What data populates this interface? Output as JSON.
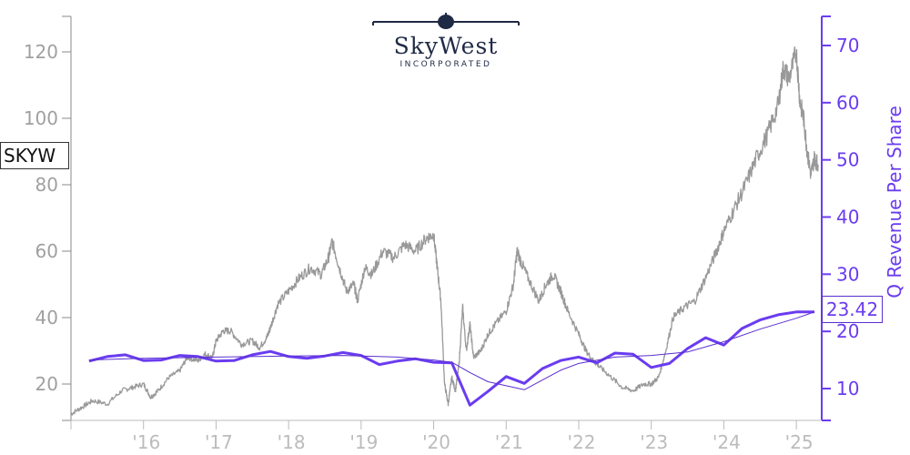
{
  "logo": {
    "name": "SkyWest",
    "subtitle": "INCORPORATED"
  },
  "ticker": "SKYW",
  "last_value_label": "23.42",
  "colors": {
    "price": "#999999",
    "revenue_thick": "#6a3cf0",
    "revenue_thin": "#5a2fd0",
    "left_axis": "#a0a0a0",
    "right_axis": "#6a3cf0",
    "x_labels": "#bcbcbc"
  },
  "chart_data": {
    "type": "line",
    "title": "",
    "x_ticks": [
      "'16",
      "'17",
      "'18",
      "'19",
      "'20",
      "'21",
      "'22",
      "'23",
      "'24",
      "'25"
    ],
    "x_range": [
      2015.0,
      2025.35
    ],
    "y_left": {
      "label": "",
      "ticks": [
        20,
        40,
        60,
        80,
        100,
        120
      ],
      "range": [
        10,
        130
      ]
    },
    "y_right": {
      "label": "Q Revenue Per Share",
      "ticks": [
        10,
        20,
        30,
        40,
        50,
        60,
        70
      ],
      "range": [
        5,
        75
      ]
    },
    "grid": false,
    "series": [
      {
        "name": "SKYW",
        "axis": "left",
        "style": "thin-gray",
        "x": [
          2015.0,
          2015.15,
          2015.3,
          2015.5,
          2015.7,
          2015.85,
          2016.0,
          2016.1,
          2016.2,
          2016.35,
          2016.5,
          2016.6,
          2016.75,
          2016.85,
          2016.95,
          2017.0,
          2017.1,
          2017.2,
          2017.35,
          2017.5,
          2017.6,
          2017.7,
          2017.75,
          2017.85,
          2018.0,
          2018.15,
          2018.3,
          2018.45,
          2018.55,
          2018.6,
          2018.7,
          2018.8,
          2018.9,
          2018.95,
          2019.05,
          2019.15,
          2019.3,
          2019.45,
          2019.6,
          2019.75,
          2019.9,
          2020.0,
          2020.05,
          2020.1,
          2020.15,
          2020.2,
          2020.25,
          2020.3,
          2020.35,
          2020.4,
          2020.45,
          2020.5,
          2020.55,
          2020.65,
          2020.75,
          2020.85,
          2021.0,
          2021.1,
          2021.15,
          2021.2,
          2021.3,
          2021.45,
          2021.55,
          2021.65,
          2021.75,
          2021.85,
          2022.0,
          2022.1,
          2022.2,
          2022.3,
          2022.45,
          2022.6,
          2022.75,
          2022.9,
          2023.0,
          2023.1,
          2023.2,
          2023.3,
          2023.45,
          2023.6,
          2023.75,
          2023.9,
          2024.0,
          2024.15,
          2024.3,
          2024.45,
          2024.6,
          2024.75,
          2024.82,
          2024.9,
          2025.0,
          2025.05,
          2025.1,
          2025.15,
          2025.2,
          2025.25,
          2025.3
        ],
        "values": [
          11,
          13,
          15,
          14,
          18,
          19,
          20,
          16,
          18,
          22,
          24,
          28,
          27,
          29,
          28,
          33,
          36,
          36,
          32,
          33,
          31,
          34,
          37,
          44,
          48,
          52,
          55,
          53,
          58,
          63,
          55,
          48,
          50,
          45,
          55,
          53,
          60,
          58,
          62,
          60,
          64,
          65,
          55,
          45,
          20,
          14,
          22,
          18,
          26,
          43,
          30,
          38,
          28,
          30,
          35,
          38,
          42,
          50,
          60,
          57,
          52,
          45,
          50,
          53,
          48,
          42,
          35,
          30,
          27,
          25,
          22,
          19,
          18,
          20,
          20,
          22,
          30,
          40,
          43,
          45,
          52,
          60,
          66,
          73,
          80,
          88,
          95,
          104,
          115,
          112,
          120,
          105,
          100,
          90,
          83,
          88,
          86
        ]
      },
      {
        "name": "",
        "axis": "right",
        "style": "thick-purple",
        "x": [
          2015.25,
          2015.5,
          2015.75,
          2016.0,
          2016.25,
          2016.5,
          2016.75,
          2017.0,
          2017.25,
          2017.5,
          2017.75,
          2018.0,
          2018.25,
          2018.5,
          2018.75,
          2019.0,
          2019.25,
          2019.5,
          2019.75,
          2020.0,
          2020.25,
          2020.5,
          2020.75,
          2021.0,
          2021.25,
          2021.5,
          2021.75,
          2022.0,
          2022.25,
          2022.5,
          2022.75,
          2023.0,
          2023.25,
          2023.5,
          2023.75,
          2024.0,
          2024.25,
          2024.5,
          2024.75,
          2025.0,
          2025.25
        ],
        "values": [
          14.8,
          15.6,
          15.9,
          14.9,
          15.0,
          15.8,
          15.6,
          14.8,
          14.9,
          15.9,
          16.5,
          15.6,
          15.3,
          15.7,
          16.3,
          15.8,
          14.2,
          14.8,
          15.2,
          14.6,
          14.5,
          7.1,
          9.5,
          12.1,
          10.9,
          13.5,
          14.9,
          15.5,
          14.5,
          16.2,
          16.0,
          13.7,
          14.4,
          17.0,
          18.9,
          17.6,
          20.5,
          22.0,
          22.9,
          23.4,
          23.42
        ]
      },
      {
        "name": "",
        "axis": "right",
        "style": "thin-purple",
        "x": [
          2015.25,
          2016.0,
          2017.0,
          2018.0,
          2018.75,
          2019.5,
          2020.0,
          2020.25,
          2020.5,
          2020.75,
          2021.0,
          2021.25,
          2021.5,
          2021.75,
          2022.0,
          2022.5,
          2023.0,
          2023.5,
          2024.0,
          2024.5,
          2025.0,
          2025.25
        ],
        "values": [
          15.0,
          15.3,
          15.5,
          15.7,
          15.8,
          15.5,
          15.0,
          14.6,
          12.8,
          11.2,
          10.5,
          9.8,
          11.5,
          13.2,
          14.4,
          15.5,
          15.8,
          16.4,
          18.2,
          20.4,
          22.3,
          23.4
        ]
      }
    ]
  }
}
